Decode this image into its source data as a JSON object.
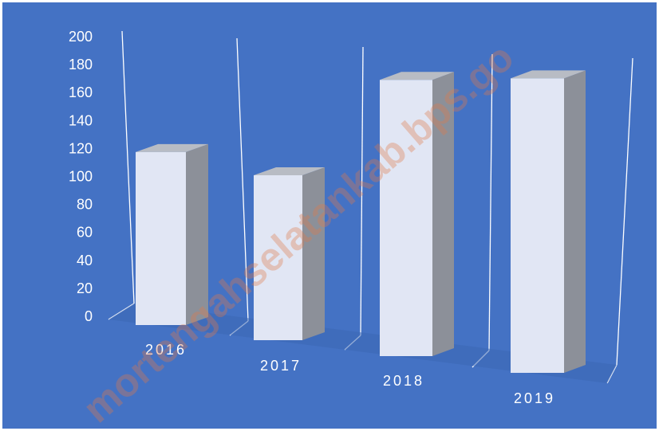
{
  "watermark": "mortengahselatankab.bps.go",
  "chart_data": {
    "type": "bar",
    "title": "",
    "xlabel": "",
    "ylabel": "",
    "categories": [
      "2016",
      "2017",
      "2018",
      "2019"
    ],
    "values": [
      122,
      115,
      176,
      176
    ],
    "ylim": [
      0,
      200
    ],
    "yticks": [
      0,
      20,
      40,
      60,
      80,
      100,
      120,
      140,
      160,
      180,
      200
    ],
    "grid": false,
    "legend": "none",
    "style": "3d-column",
    "colors": {
      "background": "#4472c4",
      "bar_front": "#e1e6f4",
      "bar_side": "#8c9099",
      "bar_top": "#b8bcc4",
      "axis": "#ffffff",
      "text": "#ffffff"
    }
  }
}
